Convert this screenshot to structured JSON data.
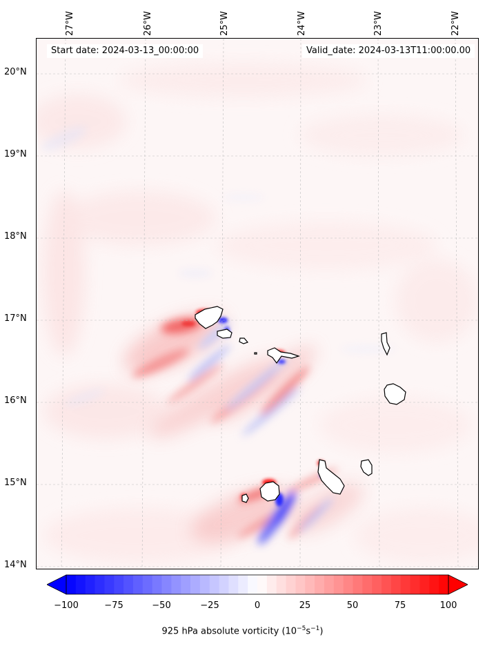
{
  "header": {
    "start_date": "Start date: 2024-03-13_00:00:00",
    "valid_date": "Valid_date: 2024-03-13T11:00:00.00"
  },
  "longitude_labels": [
    "27°W",
    "26°W",
    "25°W",
    "24°W",
    "23°W",
    "22°W"
  ],
  "latitude_labels": [
    "20°N",
    "19°N",
    "18°N",
    "17°N",
    "16°N",
    "15°N",
    "14°N"
  ],
  "colorbar": {
    "ticks": [
      "−100",
      "−75",
      "−50",
      "−25",
      "0",
      "25",
      "50",
      "75",
      "100"
    ],
    "label_prefix": "925 hPa absolute vorticity (10",
    "label_exp1": "−5",
    "label_mid": "s",
    "label_exp2": "−1",
    "label_suffix": ")",
    "min": -100,
    "max": 100,
    "extend": "both",
    "colormap": "bwr",
    "low_color": "#0000ff",
    "mid_color": "#ffffff",
    "high_color": "#ff0000"
  },
  "map": {
    "region": "Cape Verde Islands",
    "lon_range": [
      -27.35,
      -21.8
    ],
    "lat_range": [
      13.95,
      20.45
    ],
    "gridlines": true,
    "coastline_color": "#000000",
    "background_tint": "#fdf6f6"
  }
}
